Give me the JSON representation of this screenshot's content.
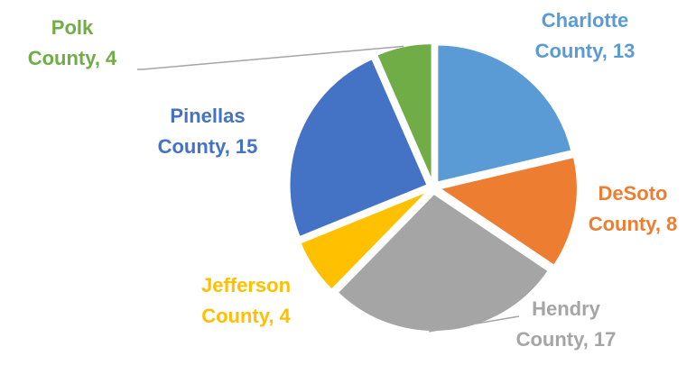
{
  "chart_data": {
    "type": "pie",
    "title": "",
    "start_angle_deg": 0,
    "explode": true,
    "slices": [
      {
        "name": "Charlotte",
        "label_line1": "Charlotte",
        "label_line2": "County, 13",
        "value": 13,
        "color": "#5B9BD5"
      },
      {
        "name": "DeSoto",
        "label_line1": "DeSoto",
        "label_line2": "County, 8",
        "value": 8,
        "color": "#ED7D31"
      },
      {
        "name": "Hendry",
        "label_line1": "Hendry",
        "label_line2": "County, 17",
        "value": 17,
        "color": "#A5A5A5"
      },
      {
        "name": "Jefferson",
        "label_line1": "Jefferson",
        "label_line2": "County, 4",
        "value": 4,
        "color": "#FFC000"
      },
      {
        "name": "Pinellas",
        "label_line1": "Pinellas",
        "label_line2": "County, 15",
        "value": 15,
        "color": "#4472C4"
      },
      {
        "name": "Polk",
        "label_line1": "Polk",
        "label_line2": "County, 4",
        "value": 4,
        "color": "#70AD47"
      }
    ]
  }
}
